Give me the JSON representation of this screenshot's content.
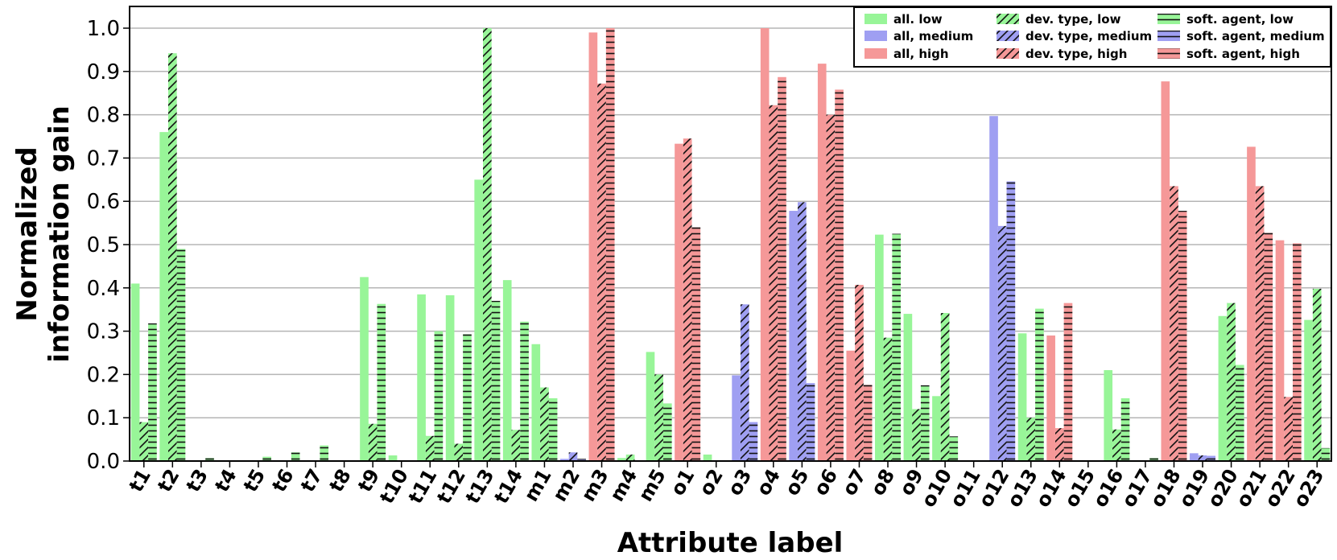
{
  "chart_data": {
    "type": "bar",
    "title": "",
    "xlabel": "Attribute label",
    "ylabel_lines": [
      "Normalized",
      "information gain"
    ],
    "ylim": [
      0,
      1.05
    ],
    "yticks": [
      "0.0",
      "0.1",
      "0.2",
      "0.3",
      "0.4",
      "0.5",
      "0.6",
      "0.7",
      "0.8",
      "0.9",
      "1.0"
    ],
    "grid": "horizontal",
    "legend_position": "top-right",
    "colors": {
      "low": "#98f598",
      "medium": "#9f9ff2",
      "high": "#f59898"
    },
    "categories": [
      "t1",
      "t2",
      "t3",
      "t4",
      "t5",
      "t6",
      "t7",
      "t8",
      "t9",
      "t10",
      "t11",
      "t12",
      "t13",
      "t14",
      "m1",
      "m2",
      "m3",
      "m4",
      "m5",
      "o1",
      "o2",
      "o3",
      "o4",
      "o5",
      "o6",
      "o7",
      "o8",
      "o9",
      "o10",
      "o11",
      "o12",
      "o13",
      "o14",
      "o15",
      "o16",
      "o17",
      "o18",
      "o19",
      "o20",
      "o21",
      "o22",
      "o23"
    ],
    "series": [
      {
        "name": "all",
        "hatch": "none",
        "values": [
          {
            "c": "low",
            "v": 0.41
          },
          {
            "c": "low",
            "v": 0.76
          },
          {
            "c": "low",
            "v": 0.0
          },
          {
            "c": "low",
            "v": 0.0
          },
          {
            "c": "low",
            "v": 0.0
          },
          {
            "c": "low",
            "v": 0.0
          },
          {
            "c": "low",
            "v": 0.0
          },
          {
            "c": "low",
            "v": 0.0
          },
          {
            "c": "low",
            "v": 0.425
          },
          {
            "c": "low",
            "v": 0.013
          },
          {
            "c": "low",
            "v": 0.385
          },
          {
            "c": "low",
            "v": 0.383
          },
          {
            "c": "low",
            "v": 0.65
          },
          {
            "c": "low",
            "v": 0.418
          },
          {
            "c": "low",
            "v": 0.27
          },
          {
            "c": "medium",
            "v": 0.005
          },
          {
            "c": "high",
            "v": 0.99
          },
          {
            "c": "low",
            "v": 0.007
          },
          {
            "c": "low",
            "v": 0.252
          },
          {
            "c": "high",
            "v": 0.733
          },
          {
            "c": "low",
            "v": 0.015
          },
          {
            "c": "medium",
            "v": 0.198
          },
          {
            "c": "high",
            "v": 1.0
          },
          {
            "c": "medium",
            "v": 0.578
          },
          {
            "c": "high",
            "v": 0.918
          },
          {
            "c": "high",
            "v": 0.255
          },
          {
            "c": "low",
            "v": 0.523
          },
          {
            "c": "low",
            "v": 0.34
          },
          {
            "c": "low",
            "v": 0.15
          },
          {
            "c": "low",
            "v": 0.0
          },
          {
            "c": "medium",
            "v": 0.797
          },
          {
            "c": "low",
            "v": 0.295
          },
          {
            "c": "high",
            "v": 0.29
          },
          {
            "c": "low",
            "v": 0.0
          },
          {
            "c": "low",
            "v": 0.21
          },
          {
            "c": "low",
            "v": 0.0
          },
          {
            "c": "high",
            "v": 0.877
          },
          {
            "c": "medium",
            "v": 0.018
          },
          {
            "c": "low",
            "v": 0.335
          },
          {
            "c": "high",
            "v": 0.726
          },
          {
            "c": "high",
            "v": 0.51
          },
          {
            "c": "low",
            "v": 0.326
          }
        ]
      },
      {
        "name": "dev. type",
        "hatch": "diagonal",
        "values": [
          {
            "c": "low",
            "v": 0.09
          },
          {
            "c": "low",
            "v": 0.942
          },
          {
            "c": "low",
            "v": 0.0
          },
          {
            "c": "low",
            "v": 0.0
          },
          {
            "c": "low",
            "v": 0.0
          },
          {
            "c": "low",
            "v": 0.0
          },
          {
            "c": "low",
            "v": 0.0
          },
          {
            "c": "low",
            "v": 0.0
          },
          {
            "c": "low",
            "v": 0.086
          },
          {
            "c": "low",
            "v": 0.0
          },
          {
            "c": "low",
            "v": 0.058
          },
          {
            "c": "low",
            "v": 0.04
          },
          {
            "c": "low",
            "v": 1.0
          },
          {
            "c": "low",
            "v": 0.072
          },
          {
            "c": "low",
            "v": 0.17
          },
          {
            "c": "medium",
            "v": 0.02
          },
          {
            "c": "high",
            "v": 0.872
          },
          {
            "c": "low",
            "v": 0.015
          },
          {
            "c": "low",
            "v": 0.2
          },
          {
            "c": "high",
            "v": 0.745
          },
          {
            "c": "low",
            "v": 0.0
          },
          {
            "c": "medium",
            "v": 0.362
          },
          {
            "c": "high",
            "v": 0.822
          },
          {
            "c": "medium",
            "v": 0.598
          },
          {
            "c": "high",
            "v": 0.8
          },
          {
            "c": "high",
            "v": 0.407
          },
          {
            "c": "low",
            "v": 0.285
          },
          {
            "c": "low",
            "v": 0.12
          },
          {
            "c": "low",
            "v": 0.342
          },
          {
            "c": "low",
            "v": 0.0
          },
          {
            "c": "medium",
            "v": 0.543
          },
          {
            "c": "low",
            "v": 0.1
          },
          {
            "c": "high",
            "v": 0.076
          },
          {
            "c": "low",
            "v": 0.0
          },
          {
            "c": "low",
            "v": 0.073
          },
          {
            "c": "low",
            "v": 0.0
          },
          {
            "c": "high",
            "v": 0.635
          },
          {
            "c": "medium",
            "v": 0.013
          },
          {
            "c": "low",
            "v": 0.365
          },
          {
            "c": "high",
            "v": 0.635
          },
          {
            "c": "high",
            "v": 0.148
          },
          {
            "c": "low",
            "v": 0.398
          }
        ]
      },
      {
        "name": "soft. agent",
        "hatch": "horizontal",
        "values": [
          {
            "c": "low",
            "v": 0.318
          },
          {
            "c": "low",
            "v": 0.49
          },
          {
            "c": "low",
            "v": 0.007
          },
          {
            "c": "low",
            "v": 0.0
          },
          {
            "c": "low",
            "v": 0.01
          },
          {
            "c": "low",
            "v": 0.02
          },
          {
            "c": "low",
            "v": 0.036
          },
          {
            "c": "low",
            "v": 0.0
          },
          {
            "c": "low",
            "v": 0.363
          },
          {
            "c": "low",
            "v": 0.0
          },
          {
            "c": "low",
            "v": 0.3
          },
          {
            "c": "low",
            "v": 0.293
          },
          {
            "c": "low",
            "v": 0.37
          },
          {
            "c": "low",
            "v": 0.322
          },
          {
            "c": "low",
            "v": 0.145
          },
          {
            "c": "medium",
            "v": 0.005
          },
          {
            "c": "high",
            "v": 1.0
          },
          {
            "c": "low",
            "v": 0.0
          },
          {
            "c": "low",
            "v": 0.133
          },
          {
            "c": "high",
            "v": 0.54
          },
          {
            "c": "low",
            "v": 0.0
          },
          {
            "c": "medium",
            "v": 0.09
          },
          {
            "c": "high",
            "v": 0.887
          },
          {
            "c": "medium",
            "v": 0.18
          },
          {
            "c": "high",
            "v": 0.858
          },
          {
            "c": "high",
            "v": 0.176
          },
          {
            "c": "low",
            "v": 0.525
          },
          {
            "c": "low",
            "v": 0.175
          },
          {
            "c": "low",
            "v": 0.057
          },
          {
            "c": "low",
            "v": 0.0
          },
          {
            "c": "medium",
            "v": 0.646
          },
          {
            "c": "low",
            "v": 0.352
          },
          {
            "c": "high",
            "v": 0.365
          },
          {
            "c": "low",
            "v": 0.0
          },
          {
            "c": "low",
            "v": 0.145
          },
          {
            "c": "low",
            "v": 0.007
          },
          {
            "c": "high",
            "v": 0.578
          },
          {
            "c": "medium",
            "v": 0.012
          },
          {
            "c": "low",
            "v": 0.222
          },
          {
            "c": "high",
            "v": 0.527
          },
          {
            "c": "high",
            "v": 0.503
          },
          {
            "c": "low",
            "v": 0.03
          }
        ]
      }
    ],
    "legend": [
      [
        "all. low",
        "dev. type, low",
        "soft. agent, low"
      ],
      [
        "all, medium",
        "dev. type, medium",
        "soft. agent, medium"
      ],
      [
        "all, high",
        "dev. type, high",
        "soft. agent, high"
      ]
    ]
  }
}
